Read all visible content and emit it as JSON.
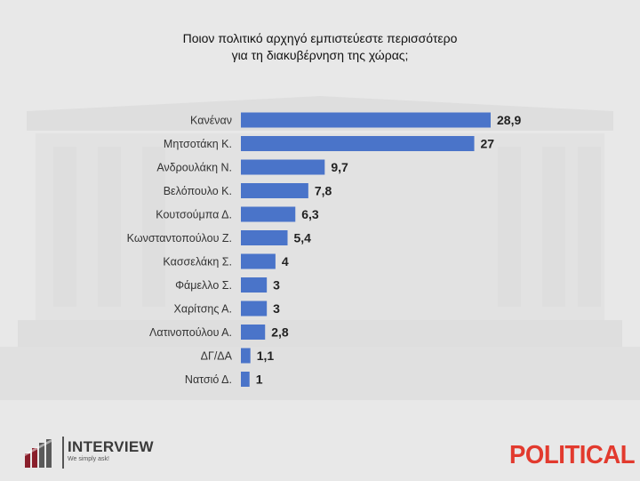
{
  "title_line1": "Ποιον πολιτικό αρχηγό εμπιστεύεστε περισσότερο",
  "title_line2": "για τη διακυβέρνηση της χώρας;",
  "colors": {
    "bar": "#4a74c9",
    "label": "#333333",
    "value": "#222222"
  },
  "logo_left": {
    "name": "INTERVIEW",
    "tagline": "We simply ask!"
  },
  "logo_right": {
    "name": "POLITICAL"
  },
  "chart_data": {
    "type": "bar",
    "orientation": "horizontal",
    "title": "Ποιον πολιτικό αρχηγό εμπιστεύεστε περισσότερο για τη διακυβέρνηση της χώρας;",
    "categories": [
      "Κανέναν",
      "Μητσοτάκη Κ.",
      "Ανδρουλάκη Ν.",
      "Βελόπουλο Κ.",
      "Κουτσούμπα Δ.",
      "Κωνσταντοπούλου Ζ.",
      "Κασσελάκη Σ.",
      "Φάμελλο Σ.",
      "Χαρίτσης Α.",
      "Λατινοπούλου Α.",
      "ΔΓ/ΔΑ",
      "Νατσιό Δ."
    ],
    "values": [
      28.9,
      27,
      9.7,
      7.8,
      6.3,
      5.4,
      4,
      3,
      3,
      2.8,
      1.1,
      1
    ],
    "value_labels": [
      "28,9",
      "27",
      "9,7",
      "7,8",
      "6,3",
      "5,4",
      "4",
      "3",
      "3",
      "2,8",
      "1,1",
      "1"
    ],
    "grid": false
  }
}
